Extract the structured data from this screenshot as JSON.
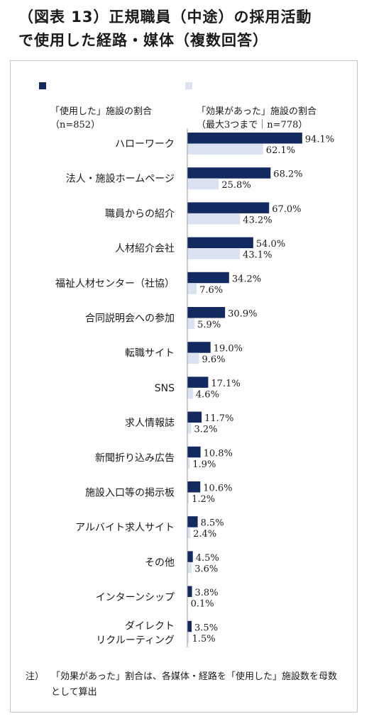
{
  "title": "（図表 13）正規職員（中途）の採用活動\nで使用した経路・媒体（複数回答）",
  "legend": {
    "used": "「使用した」施設の割合\n（n=852）",
    "effective": "「効果があった」施設の割合\n（最大3つまで｜n=778）"
  },
  "note": {
    "mark": "注）",
    "text": "「効果があった」割合は、各媒体・経路を「使用した」施設数を母数として算出"
  },
  "colors": {
    "used": "#122a5f",
    "effective": "#dbe2f1"
  },
  "chart_data": {
    "type": "bar",
    "orientation": "horizontal",
    "categories": [
      "ハローワーク",
      "法人・施設ホームページ",
      "職員からの紹介",
      "人材紹介会社",
      "福祉人材センター（社協）",
      "合同説明会への参加",
      "転職サイト",
      "SNS",
      "求人情報誌",
      "新聞折り込み広告",
      "施設入口等の掲示板",
      "アルバイト求人サイト",
      "その他",
      "インターンシップ",
      "ダイレクト\nリクルーティング"
    ],
    "series": [
      {
        "name": "「使用した」施設の割合（n=852）",
        "values": [
          94.1,
          68.2,
          67.0,
          54.0,
          34.2,
          30.9,
          19.0,
          17.1,
          11.7,
          10.8,
          10.6,
          8.5,
          4.5,
          3.8,
          3.5
        ],
        "labels": [
          "94.1%",
          "68.2%",
          "67.0%",
          "54.0%",
          "34.2%",
          "30.9%",
          "19.0%",
          "17.1%",
          "11.7%",
          "10.8%",
          "10.6%",
          "8.5%",
          "4.5%",
          "3.8%",
          "3.5%"
        ]
      },
      {
        "name": "「効果があった」施設の割合（最大3つまで｜n=778）",
        "values": [
          62.1,
          25.8,
          43.2,
          43.1,
          7.6,
          5.9,
          9.6,
          4.6,
          3.2,
          1.9,
          1.2,
          2.4,
          3.6,
          0.1,
          1.5
        ],
        "labels": [
          "62.1%",
          "25.8%",
          "43.2%",
          "43.1%",
          "7.6%",
          "5.9%",
          "9.6%",
          "4.6%",
          "3.2%",
          "1.9%",
          "1.2%",
          "2.4%",
          "3.6%",
          "0.1%",
          "1.5%"
        ]
      }
    ],
    "xlim": [
      0,
      100
    ],
    "grid": false,
    "legend_position": "top"
  }
}
